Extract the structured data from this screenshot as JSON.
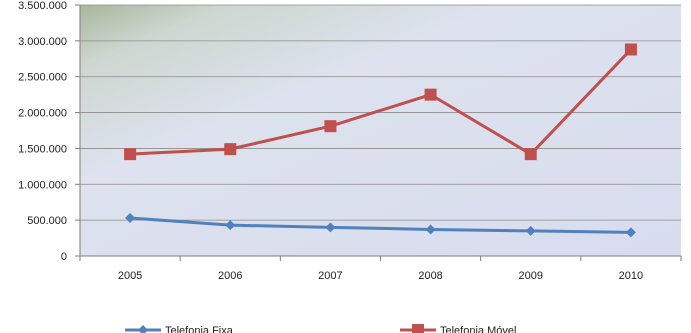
{
  "chart_data": {
    "type": "line",
    "title": "",
    "xlabel": "",
    "ylabel": "",
    "categories": [
      "2005",
      "2006",
      "2007",
      "2008",
      "2009",
      "2010"
    ],
    "ylim": [
      0,
      3500000
    ],
    "y_ticks": [
      0,
      500000,
      1000000,
      1500000,
      2000000,
      2500000,
      3000000,
      3500000
    ],
    "y_tick_labels": [
      "0",
      "500.000",
      "1.000.000",
      "1.500.000",
      "2.000.000",
      "2.500.000",
      "3.000.000",
      "3.500.000"
    ],
    "grid": true,
    "legend_position": "bottom",
    "series": [
      {
        "name": "Telefonia Fixa",
        "color": "#4f81bd",
        "marker": "diamond",
        "values": [
          530000,
          430000,
          400000,
          370000,
          350000,
          330000
        ]
      },
      {
        "name": "Telefonia Móvel",
        "color": "#c0504d",
        "marker": "square",
        "values": [
          1420000,
          1490000,
          1810000,
          2250000,
          1420000,
          2880000
        ]
      }
    ]
  }
}
